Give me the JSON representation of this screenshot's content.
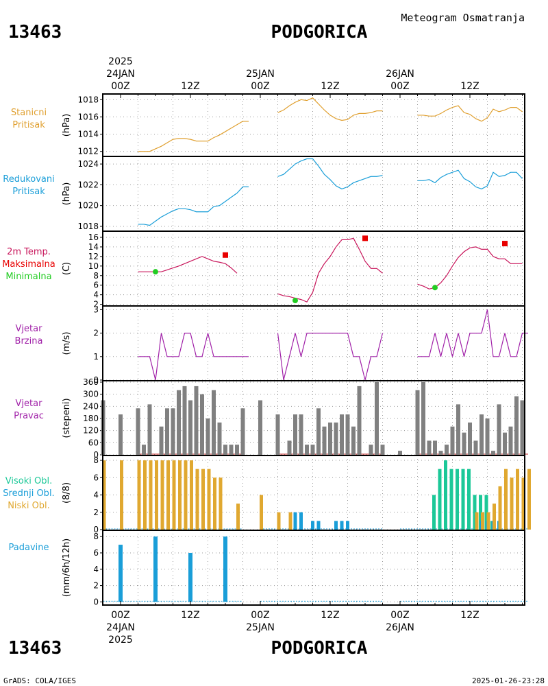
{
  "header": {
    "station_id": "13463",
    "station_name": "PODGORICA",
    "subtitle": "Meteogram Osmatranja"
  },
  "footer": {
    "station_id": "13463",
    "station_name": "PODGORICA",
    "credit": "GrADS: COLA/IGES",
    "timestamp": "2025-01-26-23:28"
  },
  "colors": {
    "pressure": "#e0a030",
    "reduced": "#1a9ed8",
    "temp": "#c8145a",
    "tmax": "#e80000",
    "tmin": "#22cc22",
    "wind": "#a020a8",
    "bar_gray": "#808080",
    "cloud_high": "#1cc898",
    "cloud_mid": "#1a9ed8",
    "cloud_low": "#e0a830",
    "precip": "#1a9ed8",
    "grid": "#999999"
  },
  "time_axis": {
    "top_labels": [
      {
        "t": 0,
        "lines": [
          "2025",
          "24JAN",
          "00Z"
        ]
      },
      {
        "t": 12,
        "lines": [
          "12Z"
        ]
      },
      {
        "t": 24,
        "lines": [
          "25JAN",
          "00Z"
        ]
      },
      {
        "t": 36,
        "lines": [
          "12Z"
        ]
      },
      {
        "t": 48,
        "lines": [
          "26JAN",
          "00Z"
        ]
      },
      {
        "t": 60,
        "lines": [
          "12Z"
        ]
      }
    ],
    "bottom_labels": [
      {
        "t": 0,
        "lines": [
          "00Z",
          "24JAN",
          "2025"
        ]
      },
      {
        "t": 12,
        "lines": [
          "12Z"
        ]
      },
      {
        "t": 24,
        "lines": [
          "00Z",
          "25JAN"
        ]
      },
      {
        "t": 36,
        "lines": [
          "12Z"
        ]
      },
      {
        "t": 48,
        "lines": [
          "00Z",
          "26JAN"
        ]
      },
      {
        "t": 60,
        "lines": [
          "12Z"
        ]
      }
    ]
  },
  "chart_data": [
    {
      "id": "stanicni",
      "type": "line",
      "labels": [
        "Stanicni",
        "Pritisak"
      ],
      "label_colors": [
        "pressure",
        "pressure"
      ],
      "unit": "(hPa)",
      "ylim": [
        1011.5,
        1018.5
      ],
      "yticks": [
        1012,
        1014,
        1016,
        1018
      ],
      "series": [
        {
          "color": "pressure",
          "segments": [
            {
              "t0": 3,
              "values": [
                1012.0,
                1012.0,
                1012.0,
                1012.3,
                1012.6,
                1013.0,
                1013.4,
                1013.5,
                1013.5,
                1013.4,
                1013.2,
                1013.2,
                1013.2,
                1013.6,
                1013.9,
                1014.3,
                1014.7,
                1015.1,
                1015.5,
                1015.5
              ]
            },
            {
              "t0": 27,
              "values": [
                1016.5,
                1016.8,
                1017.3,
                1017.7,
                1018.0,
                1017.9,
                1018.2,
                1017.5,
                1016.8,
                1016.2,
                1015.8,
                1015.6,
                1015.7,
                1016.2,
                1016.4,
                1016.4,
                1016.5,
                1016.7,
                1016.7
              ]
            },
            {
              "t0": 51,
              "values": [
                1016.2,
                1016.2,
                1016.1,
                1016.1,
                1016.4,
                1016.8,
                1017.1,
                1017.3,
                1016.5,
                1016.3,
                1015.8,
                1015.5,
                1015.9,
                1016.9,
                1016.6,
                1016.8,
                1017.1,
                1017.1,
                1016.6
              ]
            }
          ]
        }
      ]
    },
    {
      "id": "redukovani",
      "type": "line",
      "labels": [
        "Redukovani",
        "Pritisak"
      ],
      "label_colors": [
        "reduced",
        "reduced"
      ],
      "unit": "(hPa)",
      "ylim": [
        1017.6,
        1024.6
      ],
      "yticks": [
        1018,
        1020,
        1022,
        1024
      ],
      "series": [
        {
          "color": "reduced",
          "segments": [
            {
              "t0": 3,
              "values": [
                1018.2,
                1018.2,
                1018.1,
                1018.5,
                1018.9,
                1019.2,
                1019.5,
                1019.7,
                1019.7,
                1019.6,
                1019.4,
                1019.4,
                1019.4,
                1019.9,
                1020.0,
                1020.4,
                1020.8,
                1021.2,
                1021.8,
                1021.8
              ]
            },
            {
              "t0": 27,
              "values": [
                1022.8,
                1023.0,
                1023.5,
                1024.0,
                1024.3,
                1024.5,
                1024.5,
                1023.8,
                1023.0,
                1022.5,
                1021.9,
                1021.6,
                1021.8,
                1022.2,
                1022.4,
                1022.6,
                1022.8,
                1022.8,
                1022.9
              ]
            },
            {
              "t0": 51,
              "values": [
                1022.4,
                1022.4,
                1022.5,
                1022.2,
                1022.7,
                1023.0,
                1023.2,
                1023.4,
                1022.6,
                1022.3,
                1021.8,
                1021.6,
                1021.9,
                1023.2,
                1022.8,
                1022.9,
                1023.2,
                1023.2,
                1022.6
              ]
            }
          ]
        }
      ]
    },
    {
      "id": "temperatura",
      "type": "line",
      "labels": [
        "2m Temp.",
        "Maksimalna",
        "Minimalna"
      ],
      "label_colors": [
        "temp",
        "tmax",
        "tmin"
      ],
      "unit": "(C)",
      "ylim": [
        1.8,
        17
      ],
      "yticks": [
        2,
        4,
        6,
        8,
        10,
        12,
        14,
        16
      ],
      "series": [
        {
          "color": "temp",
          "segments": [
            {
              "t0": 3,
              "values": [
                8.8,
                8.8,
                8.8,
                8.8,
                8.8,
                9.2,
                9.6,
                10.0,
                10.5,
                11.0,
                11.5,
                12.0,
                11.5,
                11.0,
                10.8,
                10.5,
                9.6,
                8.5
              ]
            },
            {
              "t0": 27,
              "values": [
                4.2,
                3.8,
                3.6,
                3.3,
                3.0,
                2.5,
                4.5,
                8.5,
                10.5,
                12.0,
                14.0,
                15.5,
                15.5,
                15.8,
                13.5,
                11.0,
                9.5,
                9.5,
                8.5
              ]
            },
            {
              "t0": 51,
              "values": [
                6.2,
                5.8,
                5.2,
                5.5,
                6.5,
                8.0,
                10.0,
                11.8,
                13.0,
                13.8,
                14.0,
                13.5,
                13.5,
                12.0,
                11.5,
                11.5,
                10.5,
                10.5,
                10.5
              ]
            }
          ]
        }
      ],
      "markers": [
        {
          "t": 6,
          "value": 8.8,
          "kind": "min"
        },
        {
          "t": 18,
          "value": 12.3,
          "kind": "max"
        },
        {
          "t": 30,
          "value": 2.8,
          "kind": "min"
        },
        {
          "t": 42,
          "value": 15.8,
          "kind": "max"
        },
        {
          "t": 54,
          "value": 5.5,
          "kind": "min"
        },
        {
          "t": 66,
          "value": 14.7,
          "kind": "max"
        }
      ]
    },
    {
      "id": "vjetar_brzina",
      "type": "line",
      "labels": [
        "Vjetar",
        "Brzina"
      ],
      "label_colors": [
        "wind",
        "wind"
      ],
      "unit": "(m/s)",
      "ylim": [
        0,
        3.1
      ],
      "yticks": [
        0,
        1,
        2,
        3
      ],
      "series": [
        {
          "color": "wind",
          "segments": [
            {
              "t0": 3,
              "values": [
                1,
                1,
                1,
                0,
                2,
                1,
                1,
                1,
                2,
                2,
                1,
                1,
                2,
                1,
                1,
                1,
                1,
                1,
                1,
                1
              ]
            },
            {
              "t0": 27,
              "values": [
                2,
                0,
                1,
                2,
                1,
                2,
                2,
                2,
                2,
                2,
                2,
                2,
                2,
                1,
                1,
                0,
                1,
                1,
                2
              ]
            },
            {
              "t0": 51,
              "values": [
                1,
                1,
                1,
                2,
                1,
                2,
                1,
                2,
                1,
                2,
                2,
                2,
                3,
                1,
                1,
                2,
                1,
                1,
                2,
                2
              ]
            }
          ]
        }
      ]
    },
    {
      "id": "vjetar_pravac",
      "type": "bar",
      "labels": [
        "Vjetar",
        "Pravac"
      ],
      "label_colors": [
        "wind",
        "wind"
      ],
      "unit": "(stepeni)",
      "ylim": [
        0,
        360
      ],
      "yticks": [
        0,
        60,
        120,
        180,
        240,
        300,
        360
      ],
      "series": [
        {
          "name": "dir",
          "color": "bar_gray",
          "points": [
            [
              -3,
              270
            ],
            [
              0,
              200
            ],
            [
              3,
              230
            ],
            [
              4,
              50
            ],
            [
              5,
              250
            ],
            [
              6,
              0
            ],
            [
              7,
              140
            ],
            [
              8,
              230
            ],
            [
              9,
              230
            ],
            [
              10,
              320
            ],
            [
              11,
              340
            ],
            [
              12,
              270
            ],
            [
              13,
              340
            ],
            [
              14,
              300
            ],
            [
              15,
              180
            ],
            [
              16,
              320
            ],
            [
              17,
              160
            ],
            [
              18,
              50
            ],
            [
              19,
              50
            ],
            [
              20,
              50
            ],
            [
              21,
              230
            ],
            [
              24,
              270
            ],
            [
              27,
              200
            ],
            [
              28,
              0
            ],
            [
              29,
              70
            ],
            [
              30,
              200
            ],
            [
              31,
              200
            ],
            [
              32,
              50
            ],
            [
              33,
              50
            ],
            [
              34,
              230
            ],
            [
              35,
              140
            ],
            [
              36,
              160
            ],
            [
              37,
              160
            ],
            [
              38,
              200
            ],
            [
              39,
              200
            ],
            [
              40,
              140
            ],
            [
              41,
              340
            ],
            [
              42,
              0
            ],
            [
              43,
              50
            ],
            [
              44,
              360
            ],
            [
              45,
              50
            ],
            [
              48,
              20
            ],
            [
              51,
              320
            ],
            [
              52,
              360
            ],
            [
              53,
              70
            ],
            [
              54,
              70
            ],
            [
              55,
              20
            ],
            [
              56,
              50
            ],
            [
              57,
              140
            ],
            [
              58,
              250
            ],
            [
              59,
              110
            ],
            [
              60,
              160
            ],
            [
              61,
              70
            ],
            [
              62,
              200
            ],
            [
              63,
              180
            ],
            [
              64,
              20
            ],
            [
              65,
              250
            ],
            [
              66,
              110
            ],
            [
              67,
              140
            ],
            [
              68,
              290
            ],
            [
              69,
              270
            ]
          ]
        }
      ]
    },
    {
      "id": "oblaci",
      "type": "bar",
      "labels": [
        "Visoki Obl.",
        "Srednji Obl.",
        "Niski Obl."
      ],
      "label_colors": [
        "cloud_high",
        "cloud_mid",
        "cloud_low"
      ],
      "unit": "(8/8)",
      "ylim": [
        0,
        8.4
      ],
      "yticks": [
        0,
        2,
        4,
        6,
        8
      ],
      "series": [
        {
          "name": "Visoki Obl.",
          "color": "cloud_high",
          "points": [
            [
              54,
              4
            ],
            [
              55,
              7
            ],
            [
              56,
              8
            ],
            [
              57,
              7
            ],
            [
              58,
              7
            ],
            [
              59,
              7
            ],
            [
              60,
              7
            ],
            [
              61,
              4
            ],
            [
              62,
              4
            ],
            [
              63,
              4
            ],
            [
              64,
              1
            ]
          ]
        },
        {
          "name": "Srednji Obl.",
          "color": "cloud_mid",
          "points": [
            [
              30,
              2
            ],
            [
              31,
              2
            ],
            [
              33,
              1
            ],
            [
              34,
              1
            ],
            [
              37,
              1
            ],
            [
              38,
              1
            ],
            [
              39,
              1
            ],
            [
              62,
              1
            ],
            [
              63,
              1
            ],
            [
              64,
              1
            ],
            [
              65,
              1
            ]
          ]
        },
        {
          "name": "Niski Obl.",
          "color": "cloud_low",
          "points": [
            [
              -3,
              8
            ],
            [
              0,
              8
            ],
            [
              3,
              8
            ],
            [
              4,
              8
            ],
            [
              5,
              8
            ],
            [
              6,
              8
            ],
            [
              7,
              8
            ],
            [
              8,
              8
            ],
            [
              9,
              8
            ],
            [
              10,
              8
            ],
            [
              11,
              8
            ],
            [
              12,
              8
            ],
            [
              13,
              7
            ],
            [
              14,
              7
            ],
            [
              15,
              7
            ],
            [
              16,
              6
            ],
            [
              17,
              6
            ],
            [
              20,
              3
            ],
            [
              24,
              4
            ],
            [
              27,
              2
            ],
            [
              29,
              2
            ],
            [
              61,
              2
            ],
            [
              62,
              2
            ],
            [
              63,
              2
            ],
            [
              64,
              3
            ],
            [
              65,
              5
            ],
            [
              66,
              7
            ],
            [
              67,
              6
            ],
            [
              68,
              7
            ],
            [
              69,
              6
            ],
            [
              70,
              7
            ]
          ]
        }
      ]
    },
    {
      "id": "padavine",
      "type": "bar",
      "labels": [
        "Padavine"
      ],
      "label_colors": [
        "precip"
      ],
      "unit": "(mm/6h/12h)",
      "ylim": [
        -0.3,
        8.6
      ],
      "yticks": [
        0,
        2,
        4,
        6,
        8
      ],
      "series": [
        {
          "name": "precip",
          "color": "precip",
          "points": [
            [
              0,
              7
            ],
            [
              6,
              8
            ],
            [
              12,
              6
            ],
            [
              18,
              8
            ]
          ]
        }
      ]
    }
  ]
}
